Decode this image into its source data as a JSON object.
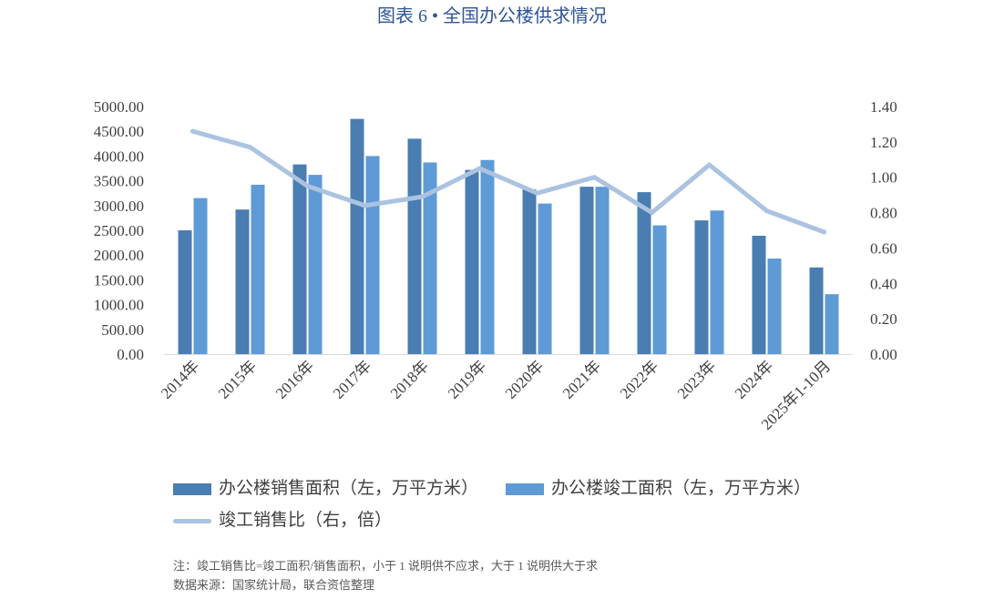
{
  "chart_data": {
    "type": "bar",
    "title": "图表 6 • 全国办公楼供求情况",
    "categories": [
      "2014年",
      "2015年",
      "2016年",
      "2017年",
      "2018年",
      "2019年",
      "2020年",
      "2021年",
      "2022年",
      "2023年",
      "2024年",
      "2025年1-10月"
    ],
    "series": [
      {
        "name": "办公楼销售面积（左，万平方米）",
        "type": "bar",
        "axis": "left",
        "color": "#4a7db1",
        "values": [
          2500,
          2920,
          3830,
          4750,
          4350,
          3720,
          3330,
          3380,
          3270,
          2700,
          2390,
          1750
        ]
      },
      {
        "name": "办公楼竣工面积（左，万平方米）",
        "type": "bar",
        "axis": "left",
        "color": "#5e9ad6",
        "values": [
          3150,
          3420,
          3620,
          4000,
          3870,
          3920,
          3040,
          3380,
          2600,
          2900,
          1930,
          1210
        ]
      },
      {
        "name": "竣工销售比（右，倍）",
        "type": "line",
        "axis": "right",
        "color": "#abc3e0",
        "values": [
          1.26,
          1.17,
          0.95,
          0.84,
          0.89,
          1.05,
          0.91,
          1.0,
          0.8,
          1.07,
          0.81,
          0.69
        ]
      }
    ],
    "y_left": {
      "range": [
        0,
        5000
      ],
      "ticks": [
        "0.00",
        "500.00",
        "1000.00",
        "1500.00",
        "2000.00",
        "2500.00",
        "3000.00",
        "3500.00",
        "4000.00",
        "4500.00",
        "5000.00"
      ]
    },
    "y_right": {
      "range": [
        0,
        1.4
      ],
      "ticks": [
        "0.00",
        "0.20",
        "0.40",
        "0.60",
        "0.80",
        "1.00",
        "1.20",
        "1.40"
      ]
    },
    "grid": false,
    "legend": "bottom"
  },
  "notes": [
    "注：竣工销售比=竣工面积/销售面积，小于 1 说明供不应求，大于 1 说明供大于求",
    "数据来源：国家统计局，联合资信整理"
  ],
  "colors": {
    "title": "#2f5597",
    "axis": "#d9d9d9",
    "text": "#404040"
  }
}
